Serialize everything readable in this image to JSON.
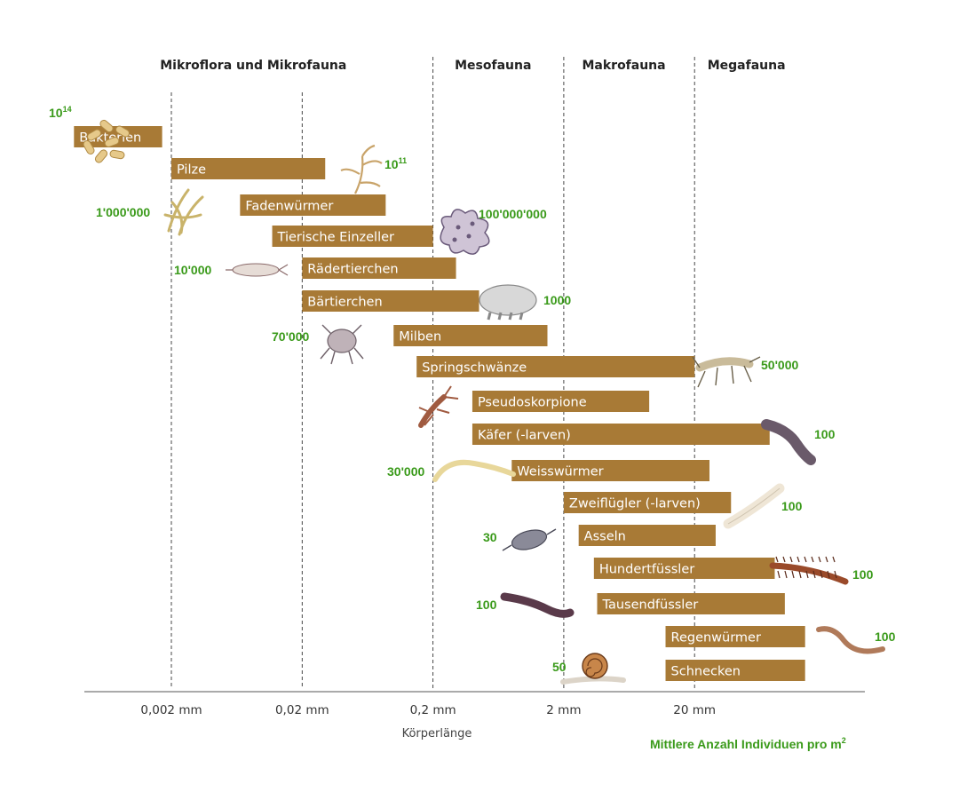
{
  "chart_data": {
    "type": "bar",
    "orientation": "horizontal-range",
    "xlabel": "Körperlänge",
    "x_scale": "log",
    "x_ticks": [
      "0,002 mm",
      "0,02 mm",
      "0,2 mm",
      "2 mm",
      "20 mm"
    ],
    "x_tick_values_mm": [
      0.002,
      0.02,
      0.2,
      2,
      20
    ],
    "xlim_mm": [
      0.0003,
      150
    ],
    "categories": [
      {
        "label": "Mikroflora und Mikrofauna",
        "from_mm": 0.0003,
        "to_mm": 0.2
      },
      {
        "label": "Mesofauna",
        "from_mm": 0.2,
        "to_mm": 2
      },
      {
        "label": "Makrofauna",
        "from_mm": 2,
        "to_mm": 20
      },
      {
        "label": "Megafauna",
        "from_mm": 20,
        "to_mm": 150
      }
    ],
    "legend": {
      "text": "Mittlere Anzahl Individuen pro m",
      "sup": "2"
    },
    "count_color": "#3a9a1a",
    "bar_color": "#a87a36",
    "series": [
      {
        "name": "Bakterien",
        "from_mm": 0.00036,
        "to_mm": 0.0017,
        "count": "10",
        "count_sup": "14",
        "count_side": "left",
        "icon": "bacteria-icon"
      },
      {
        "name": "Pilze",
        "from_mm": 0.002,
        "to_mm": 0.03,
        "count": "10",
        "count_sup": "11",
        "count_side": "right",
        "icon": "fungi-icon"
      },
      {
        "name": "Fadenwürmer",
        "from_mm": 0.0067,
        "to_mm": 0.087,
        "count": "1'000'000",
        "count_sup": "",
        "count_side": "left",
        "icon": "nematode-icon"
      },
      {
        "name": "Tierische Einzeller",
        "from_mm": 0.0118,
        "to_mm": 0.2,
        "count": "100'000'000",
        "count_sup": "",
        "count_side": "right",
        "icon": "amoeba-icon"
      },
      {
        "name": "Rädertierchen",
        "from_mm": 0.02,
        "to_mm": 0.3,
        "count": "10'000",
        "count_sup": "",
        "count_side": "left",
        "icon": "rotifer-icon"
      },
      {
        "name": "Bärtierchen",
        "from_mm": 0.02,
        "to_mm": 0.45,
        "count": "1000",
        "count_sup": "",
        "count_side": "right",
        "icon": "tardigrade-icon"
      },
      {
        "name": "Milben",
        "from_mm": 0.1,
        "to_mm": 1.5,
        "count": "70'000",
        "count_sup": "",
        "count_side": "left",
        "icon": "mite-icon"
      },
      {
        "name": "Springschwänze",
        "from_mm": 0.15,
        "to_mm": 20,
        "count": "50'000",
        "count_sup": "",
        "count_side": "right",
        "icon": "springtail-icon"
      },
      {
        "name": "Pseudoskorpione",
        "from_mm": 0.4,
        "to_mm": 9,
        "count": "",
        "count_sup": "",
        "count_side": "left",
        "icon": "pseudoscorpion-icon"
      },
      {
        "name": "Käfer (-larven)",
        "from_mm": 0.4,
        "to_mm": 75,
        "count": "100",
        "count_sup": "",
        "count_side": "right",
        "icon": "beetle-larva-icon"
      },
      {
        "name": "Weisswürmer",
        "from_mm": 0.8,
        "to_mm": 26,
        "count": "30'000",
        "count_sup": "",
        "count_side": "left",
        "icon": "whiteworm-icon"
      },
      {
        "name": "Zweiflügler (-larven)",
        "from_mm": 2,
        "to_mm": 38,
        "count": "100",
        "count_sup": "",
        "count_side": "right",
        "icon": "fly-larva-icon"
      },
      {
        "name": "Asseln",
        "from_mm": 2.6,
        "to_mm": 29,
        "count": "30",
        "count_sup": "",
        "count_side": "left",
        "icon": "woodlouse-icon"
      },
      {
        "name": "Hundertfüssler",
        "from_mm": 3.4,
        "to_mm": 82,
        "count": "100",
        "count_sup": "",
        "count_side": "right",
        "icon": "centipede-icon"
      },
      {
        "name": "Tausendfüssler",
        "from_mm": 3.6,
        "to_mm": 98,
        "count": "100",
        "count_sup": "",
        "count_side": "left",
        "icon": "millipede-icon"
      },
      {
        "name": "Regenwürmer",
        "from_mm": 12,
        "to_mm": 140,
        "count": "100",
        "count_sup": "",
        "count_side": "right",
        "icon": "earthworm-icon"
      },
      {
        "name": "Schnecken",
        "from_mm": 12,
        "to_mm": 140,
        "count": "50",
        "count_sup": "",
        "count_side": "left",
        "icon": "snail-icon"
      }
    ]
  }
}
